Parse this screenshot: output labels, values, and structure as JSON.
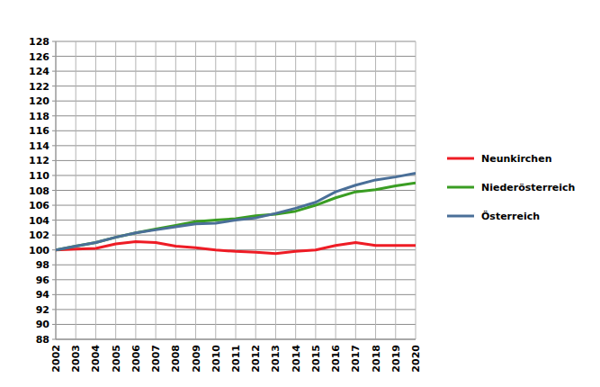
{
  "chart_data": {
    "type": "line",
    "categories": [
      "2002",
      "2003",
      "2004",
      "2005",
      "2006",
      "2007",
      "2008",
      "2009",
      "2010",
      "2011",
      "2012",
      "2013",
      "2014",
      "2015",
      "2016",
      "2017",
      "2018",
      "2019",
      "2020"
    ],
    "series": [
      {
        "name": "Neunkirchen",
        "color": "#ee1c25",
        "values": [
          100,
          100.1,
          100.2,
          100.8,
          101.1,
          101.0,
          100.5,
          100.3,
          100.0,
          99.8,
          99.7,
          99.5,
          99.8,
          100.0,
          100.6,
          101.0,
          100.6,
          100.6,
          100.6
        ]
      },
      {
        "name": "Niederösterreich",
        "color": "#3a9d23",
        "values": [
          100,
          100.5,
          101.0,
          101.7,
          102.3,
          102.8,
          103.3,
          103.8,
          104.0,
          104.2,
          104.6,
          104.8,
          105.2,
          106.0,
          107.0,
          107.8,
          108.1,
          108.6,
          109.0
        ]
      },
      {
        "name": "Österreich",
        "color": "#4a6f98",
        "values": [
          100,
          100.5,
          101.0,
          101.7,
          102.3,
          102.7,
          103.1,
          103.5,
          103.6,
          104.0,
          104.3,
          104.9,
          105.6,
          106.4,
          107.8,
          108.7,
          109.4,
          109.8,
          110.3
        ]
      }
    ],
    "ylim": [
      88,
      128
    ],
    "yticks": [
      88,
      90,
      92,
      94,
      96,
      98,
      100,
      102,
      104,
      106,
      108,
      110,
      112,
      114,
      116,
      118,
      120,
      122,
      124,
      126,
      128
    ],
    "grid": true,
    "legend": "right"
  }
}
